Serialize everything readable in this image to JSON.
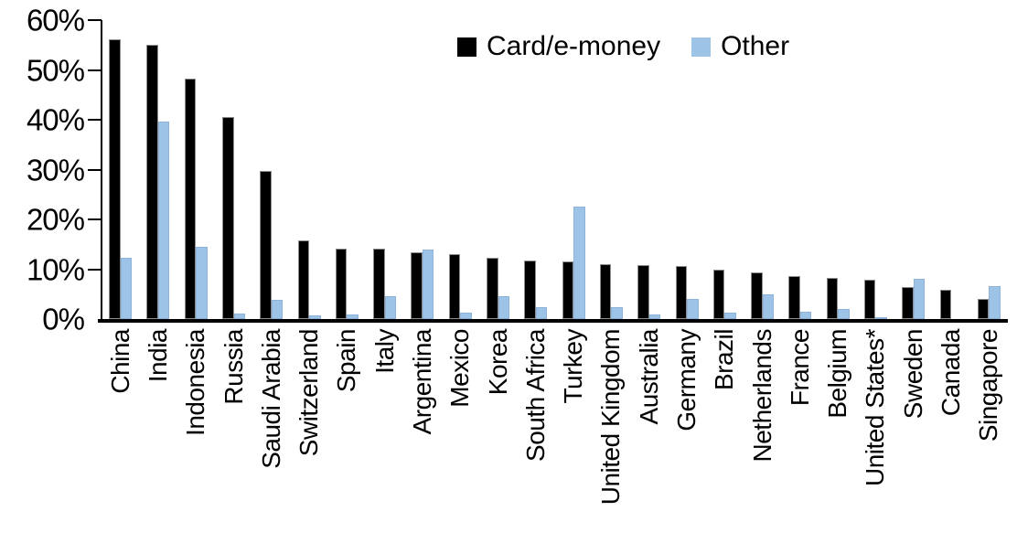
{
  "chart_data": {
    "type": "bar",
    "title": "",
    "xlabel": "",
    "ylabel": "",
    "ylim": [
      0,
      60
    ],
    "y_ticks": [
      0,
      10,
      20,
      30,
      40,
      50,
      60
    ],
    "y_tick_suffix": "%",
    "grid": false,
    "legend_position": "top-center",
    "categories": [
      "China",
      "India",
      "Indonesia",
      "Russia",
      "Saudi Arabia",
      "Switzerland",
      "Spain",
      "Italy",
      "Argentina",
      "Mexico",
      "Korea",
      "South Africa",
      "Turkey",
      "United Kingdom",
      "Australia",
      "Germany",
      "Brazil",
      "Netherlands",
      "France",
      "Belgium",
      "United States*",
      "Sweden",
      "Canada",
      "Singapore"
    ],
    "series": [
      {
        "name": "Card/e-money",
        "color": "#000000",
        "values": [
          56.2,
          55.0,
          48.3,
          40.5,
          29.8,
          15.7,
          14.2,
          14.1,
          13.4,
          13.0,
          12.3,
          11.8,
          11.6,
          11.1,
          10.9,
          10.7,
          10.0,
          9.3,
          8.7,
          8.2,
          7.8,
          6.5,
          5.9,
          4.0
        ]
      },
      {
        "name": "Other",
        "color": "#9DC3E6",
        "values": [
          12.3,
          39.7,
          14.5,
          1.1,
          3.9,
          0.8,
          1.0,
          4.6,
          13.9,
          1.3,
          4.6,
          2.4,
          22.5,
          2.4,
          1.0,
          4.0,
          1.2,
          5.0,
          1.5,
          2.1,
          0.3,
          8.0,
          0,
          6.6
        ]
      }
    ]
  },
  "legend": {
    "card_label": "Card/e-money",
    "other_label": "Other"
  }
}
